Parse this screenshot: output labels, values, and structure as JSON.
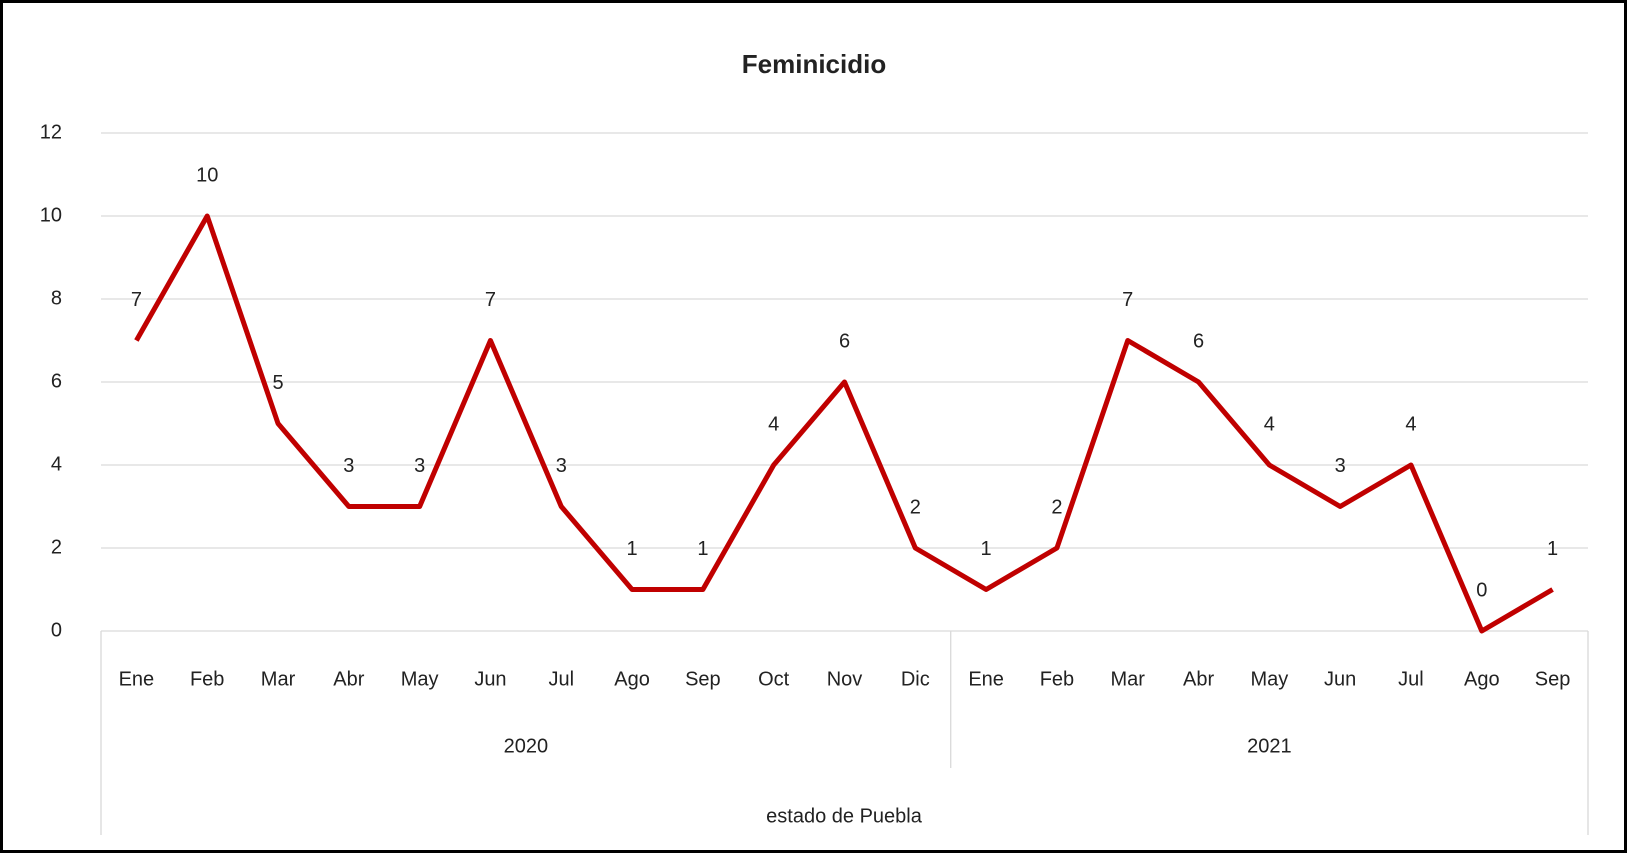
{
  "chart_data": {
    "type": "line",
    "title": "Feminicidio",
    "groups": [
      {
        "label": "2020",
        "categories": [
          "Ene",
          "Feb",
          "Mar",
          "Abr",
          "May",
          "Jun",
          "Jul",
          "Ago",
          "Sep",
          "Oct",
          "Nov",
          "Dic"
        ]
      },
      {
        "label": "2021",
        "categories": [
          "Ene",
          "Feb",
          "Mar",
          "Abr",
          "May",
          "Jun",
          "Jul",
          "Ago",
          "Sep"
        ]
      }
    ],
    "x_label": "estado de Puebla",
    "series": [
      {
        "color": "#c00000",
        "values": [
          7,
          10,
          5,
          3,
          3,
          7,
          3,
          1,
          1,
          4,
          6,
          2,
          1,
          2,
          7,
          6,
          4,
          3,
          4,
          0,
          1
        ]
      }
    ],
    "ylim": [
      0,
      12
    ],
    "yticks": [
      0,
      2,
      4,
      6,
      8,
      10,
      12
    ],
    "grid": true
  }
}
